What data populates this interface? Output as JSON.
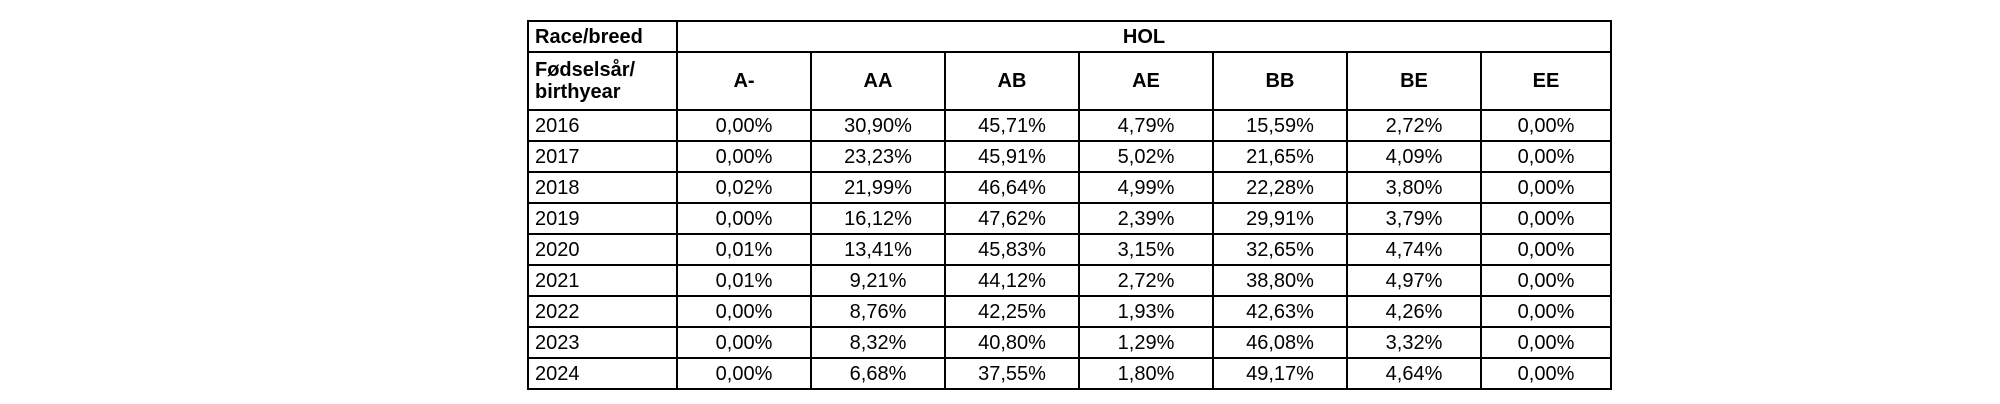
{
  "table": {
    "corner_label": "Race/breed",
    "group_label": "HOL",
    "year_header_line1": "Fødselsår/",
    "year_header_line2": "birthyear",
    "columns": [
      "A-",
      "AA",
      "AB",
      "AE",
      "BB",
      "BE",
      "EE"
    ],
    "rows": [
      {
        "year": "2016",
        "values": [
          "0,00%",
          "30,90%",
          "45,71%",
          "4,79%",
          "15,59%",
          "2,72%",
          "0,00%"
        ]
      },
      {
        "year": "2017",
        "values": [
          "0,00%",
          "23,23%",
          "45,91%",
          "5,02%",
          "21,65%",
          "4,09%",
          "0,00%"
        ]
      },
      {
        "year": "2018",
        "values": [
          "0,02%",
          "21,99%",
          "46,64%",
          "4,99%",
          "22,28%",
          "3,80%",
          "0,00%"
        ]
      },
      {
        "year": "2019",
        "values": [
          "0,00%",
          "16,12%",
          "47,62%",
          "2,39%",
          "29,91%",
          "3,79%",
          "0,00%"
        ]
      },
      {
        "year": "2020",
        "values": [
          "0,01%",
          "13,41%",
          "45,83%",
          "3,15%",
          "32,65%",
          "4,74%",
          "0,00%"
        ]
      },
      {
        "year": "2021",
        "values": [
          "0,01%",
          "9,21%",
          "44,12%",
          "2,72%",
          "38,80%",
          "4,97%",
          "0,00%"
        ]
      },
      {
        "year": "2022",
        "values": [
          "0,00%",
          "8,76%",
          "42,25%",
          "1,93%",
          "42,63%",
          "4,26%",
          "0,00%"
        ]
      },
      {
        "year": "2023",
        "values": [
          "0,00%",
          "8,32%",
          "40,80%",
          "1,29%",
          "46,08%",
          "3,32%",
          "0,00%"
        ]
      },
      {
        "year": "2024",
        "values": [
          "0,00%",
          "6,68%",
          "37,55%",
          "1,80%",
          "49,17%",
          "4,64%",
          "0,00%"
        ]
      }
    ]
  }
}
